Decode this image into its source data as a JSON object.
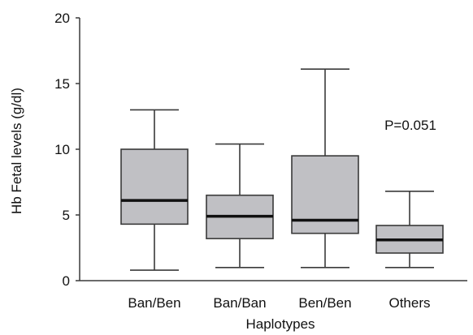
{
  "chart_data": {
    "type": "box",
    "xlabel": "Haplotypes",
    "ylabel": "Hb Fetal levels (g/dl)",
    "ylim": [
      0,
      20
    ],
    "yticks": [
      0,
      5,
      10,
      15,
      20
    ],
    "grid": false,
    "categories": [
      "Ban/Ben",
      "Ban/Ban",
      "Ben/Ben",
      "Others"
    ],
    "boxes": [
      {
        "category": "Ban/Ben",
        "min": 0.8,
        "q1": 4.3,
        "median": 6.1,
        "q3": 10.0,
        "max": 13.0
      },
      {
        "category": "Ban/Ban",
        "min": 1.0,
        "q1": 3.2,
        "median": 4.9,
        "q3": 6.5,
        "max": 10.4
      },
      {
        "category": "Ben/Ben",
        "min": 1.0,
        "q1": 3.6,
        "median": 4.6,
        "q3": 9.5,
        "max": 16.1
      },
      {
        "category": "Others",
        "min": 1.0,
        "q1": 2.1,
        "median": 3.1,
        "q3": 4.2,
        "max": 6.8
      }
    ],
    "annotation": "P=0.051",
    "colors": {
      "box_fill": "#c0c0c4",
      "stroke": "#3a3a3a",
      "median": "#111111"
    }
  }
}
